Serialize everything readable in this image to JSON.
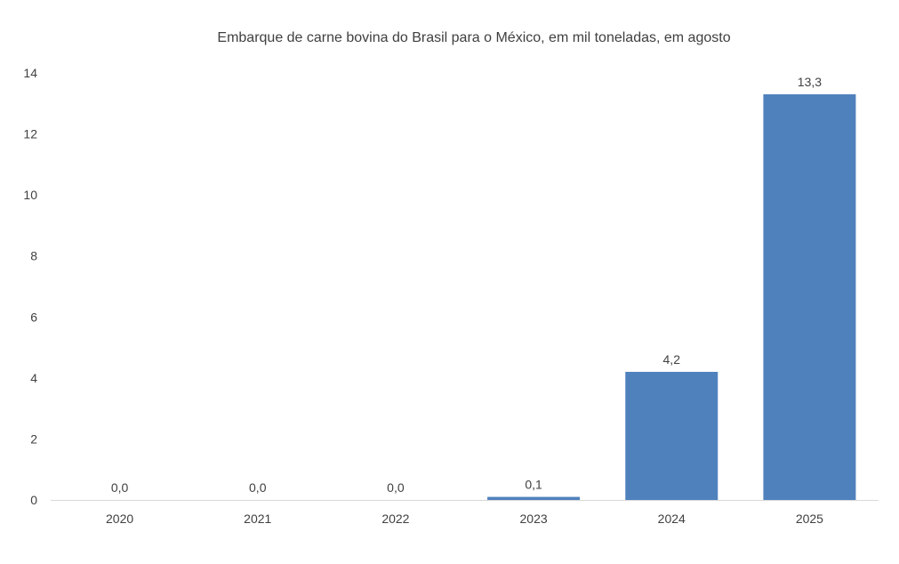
{
  "chart_data": {
    "type": "bar",
    "title": "Embarque de carne bovina do Brasil para o México, em mil toneladas, em agosto",
    "xlabel": "",
    "ylabel": "",
    "categories": [
      "2020",
      "2021",
      "2022",
      "2023",
      "2024",
      "2025"
    ],
    "values": [
      0.0,
      0.0,
      0.0,
      0.1,
      4.2,
      13.3
    ],
    "data_labels": [
      "0,0",
      "0,0",
      "0,0",
      "0,1",
      "4,2",
      "13,3"
    ],
    "ylim": [
      0,
      14
    ],
    "yticks": [
      "0",
      "2",
      "4",
      "6",
      "8",
      "10",
      "12",
      "14"
    ],
    "grid": false,
    "legend": "none",
    "bar_color": "#4F81BD"
  }
}
